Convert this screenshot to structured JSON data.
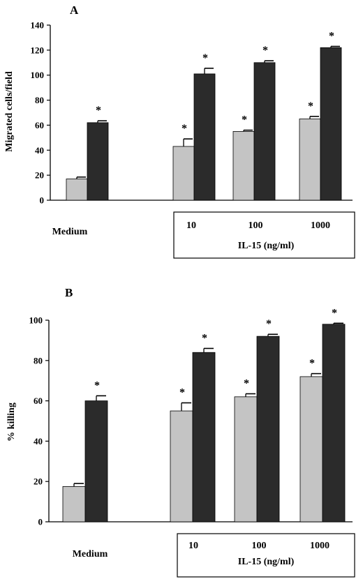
{
  "chart_data": [
    {
      "type": "bar",
      "panel": "A",
      "ylabel": "Migrated cells/field",
      "ylim": [
        0,
        140
      ],
      "yticks": [
        0,
        20,
        40,
        60,
        80,
        100,
        120,
        140
      ],
      "groups": [
        {
          "label": "Medium",
          "light": 17,
          "light_err": 1.5,
          "dark": 62,
          "dark_err": 1.5,
          "light_star": false,
          "dark_star": true
        },
        {
          "label": "10",
          "light": 43,
          "light_err": 6,
          "dark": 101,
          "dark_err": 4.5,
          "light_star": true,
          "dark_star": true
        },
        {
          "label": "100",
          "light": 55,
          "light_err": 1,
          "dark": 110,
          "dark_err": 1.5,
          "light_star": true,
          "dark_star": true
        },
        {
          "label": "1000",
          "light": 65,
          "light_err": 2,
          "dark": 122,
          "dark_err": 1,
          "light_star": true,
          "dark_star": true
        }
      ],
      "group_box_label": "IL-15 (ng/ml)",
      "star_symbol": "*",
      "colors": {
        "light": "#c4c4c4",
        "dark": "#2b2b2b"
      }
    },
    {
      "type": "bar",
      "panel": "B",
      "ylabel": "% killing",
      "ylim": [
        0,
        100
      ],
      "yticks": [
        0,
        20,
        40,
        60,
        80,
        100
      ],
      "groups": [
        {
          "label": "Medium",
          "light": 17.5,
          "light_err": 1.5,
          "dark": 60,
          "dark_err": 2.5,
          "light_star": false,
          "dark_star": true
        },
        {
          "label": "10",
          "light": 55,
          "light_err": 4,
          "dark": 84,
          "dark_err": 2,
          "light_star": true,
          "dark_star": true
        },
        {
          "label": "100",
          "light": 62,
          "light_err": 1.5,
          "dark": 92,
          "dark_err": 1,
          "light_star": true,
          "dark_star": true
        },
        {
          "label": "1000",
          "light": 72,
          "light_err": 1.5,
          "dark": 98,
          "dark_err": 0.5,
          "light_star": true,
          "dark_star": true
        }
      ],
      "group_box_label": "IL-15 (ng/ml)",
      "star_symbol": "*",
      "colors": {
        "light": "#c4c4c4",
        "dark": "#2b2b2b"
      }
    }
  ]
}
